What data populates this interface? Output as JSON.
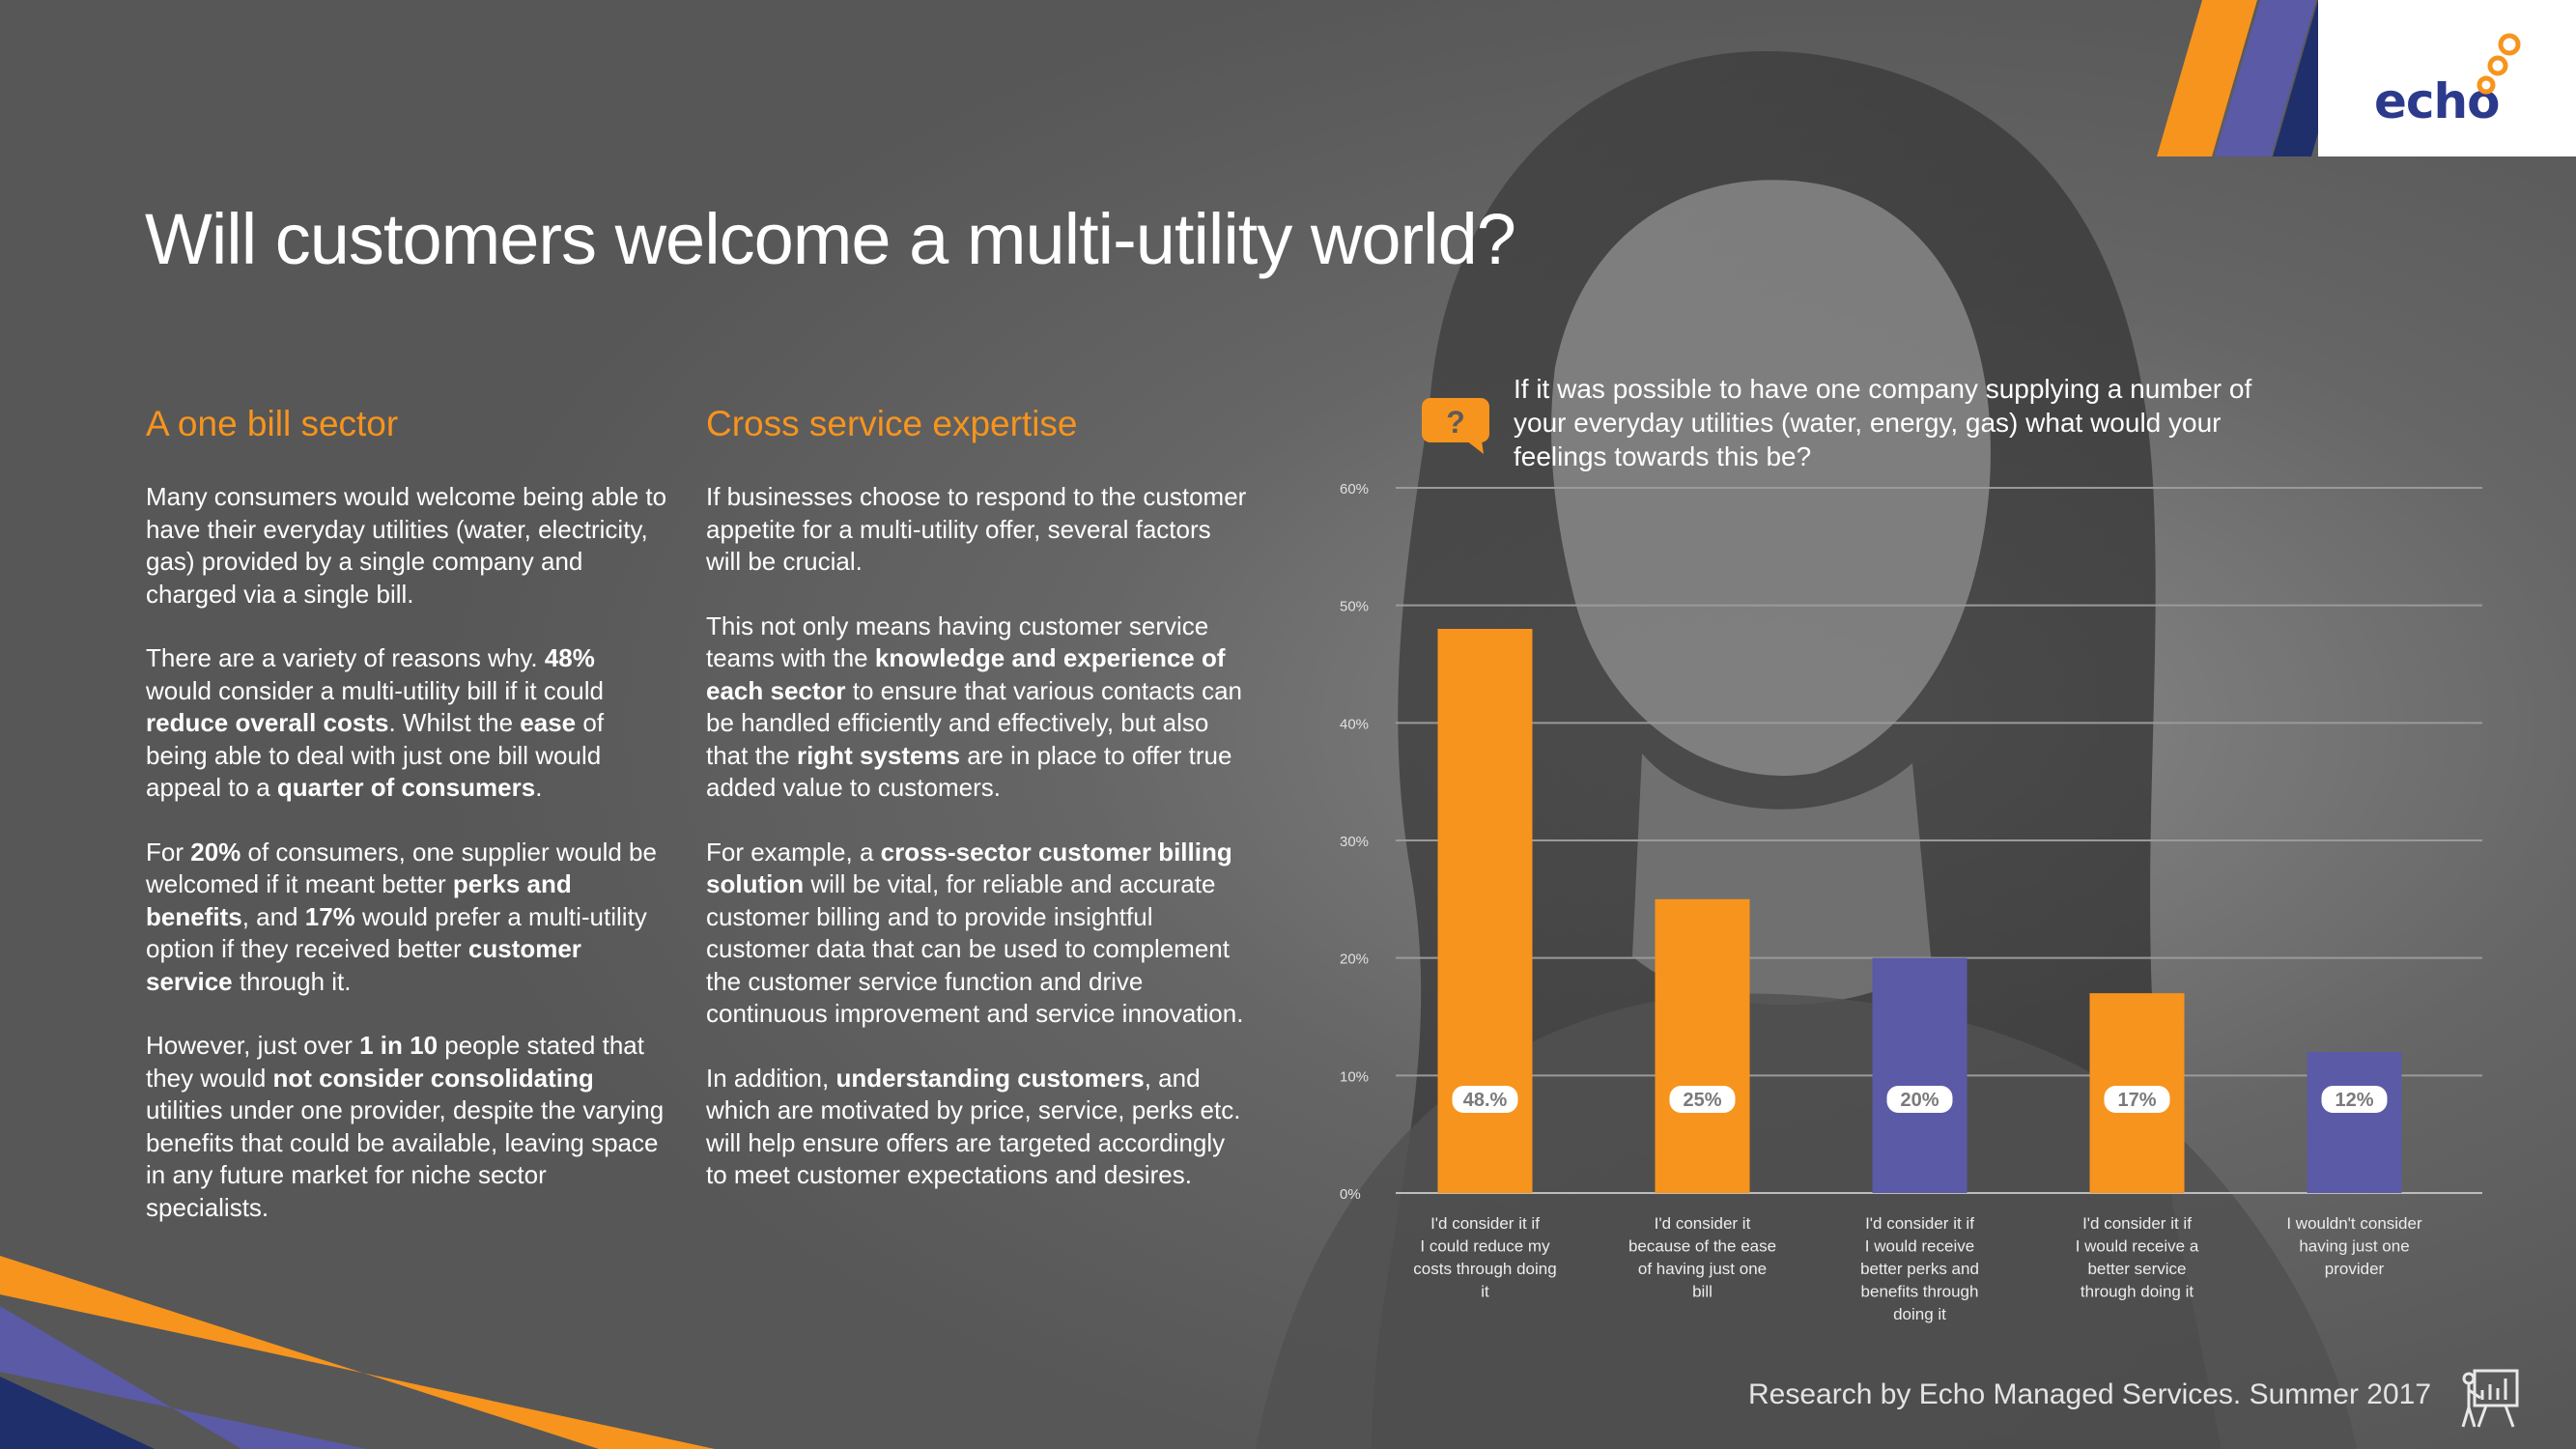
{
  "brand": {
    "logo_text": "echo",
    "accent_orange": "#f7941d",
    "accent_purple": "#5b5aa6",
    "accent_navy": "#1f2f6b"
  },
  "header": {
    "title": "Will customers welcome a multi-utility world?"
  },
  "col1": {
    "heading": "A one bill sector",
    "p1": "Many consumers would welcome being able to have their everyday utilities (water, electricity, gas) provided by a single company and charged via a single bill.",
    "p2": [
      {
        "t": "There are a variety of reasons why. ",
        "b": false
      },
      {
        "t": "48%",
        "b": true
      },
      {
        "t": " would consider  a multi-utility bill if it could ",
        "b": false
      },
      {
        "t": "reduce overall costs",
        "b": true
      },
      {
        "t": ".  Whilst the ",
        "b": false
      },
      {
        "t": "ease",
        "b": true
      },
      {
        "t": " of being able to deal with just one bill would appeal to a ",
        "b": false
      },
      {
        "t": "quarter of consumers",
        "b": true
      },
      {
        "t": ".",
        "b": false
      }
    ],
    "p3": [
      {
        "t": "For ",
        "b": false
      },
      {
        "t": "20%",
        "b": true
      },
      {
        "t": " of consumers, one supplier would be welcomed if it meant better ",
        "b": false
      },
      {
        "t": "perks and benefits",
        "b": true
      },
      {
        "t": ", and ",
        "b": false
      },
      {
        "t": "17%",
        "b": true
      },
      {
        "t": " would prefer a multi-utility option if they received better ",
        "b": false
      },
      {
        "t": "customer service",
        "b": true
      },
      {
        "t": " through it.",
        "b": false
      }
    ],
    "p4": [
      {
        "t": "However, just over ",
        "b": false
      },
      {
        "t": "1 in 10",
        "b": true
      },
      {
        "t": " people stated that they would ",
        "b": false
      },
      {
        "t": "not consider consolidating",
        "b": true
      },
      {
        "t": " utilities under one provider, despite the varying benefits that could be available, leaving space in any future market for niche sector specialists.",
        "b": false
      }
    ]
  },
  "col2": {
    "heading": "Cross service expertise",
    "p1": "If businesses choose to respond to the customer appetite for a multi-utility offer, several factors will be crucial.",
    "p2": [
      {
        "t": "This not only means having customer service teams with the ",
        "b": false
      },
      {
        "t": "knowledge and experience of each sector",
        "b": true
      },
      {
        "t": " to ensure that various contacts can be handled efficiently and effectively, but also that the ",
        "b": false
      },
      {
        "t": "right systems",
        "b": true
      },
      {
        "t": " are in place to offer true added value to customers.",
        "b": false
      }
    ],
    "p3": [
      {
        "t": "For example, a ",
        "b": false
      },
      {
        "t": "cross-sector customer billing solution",
        "b": true
      },
      {
        "t": " will be vital, for reliable and accurate customer billing and to provide insightful customer data that can be used to complement the customer service function and drive continuous improvement and service innovation.",
        "b": false
      }
    ],
    "p4": [
      {
        "t": "In addition, ",
        "b": false
      },
      {
        "t": "understanding customers",
        "b": true
      },
      {
        "t": ", and which are motivated by price, service, perks etc. will help ensure offers are targeted accordingly to meet customer expectations and desires.",
        "b": false
      }
    ]
  },
  "question_icon": "question-speech-bubble-icon",
  "question_mark": "?",
  "chart_data": {
    "type": "bar",
    "title": "If it was possible to have one company supplying a number of your everyday utilities  (water, energy, gas) what would your feelings towards this be?",
    "categories": [
      "I'd consider it if I could reduce my costs through doing it",
      "I'd consider it because of the ease of having just one bill",
      "I'd consider it if I would receive better perks and benefits through doing it",
      "I'd consider it if I would receive a better service through doing it",
      "I wouldn't consider having just one provider"
    ],
    "values": [
      48,
      25,
      20,
      17,
      12
    ],
    "data_labels": [
      "48.%",
      "25%",
      "20%",
      "17%",
      "12%"
    ],
    "colors": [
      "#f7941d",
      "#f7941d",
      "#5b5aa6",
      "#f7941d",
      "#5b5aa6"
    ],
    "ylim": [
      0,
      60
    ],
    "yticks": [
      0,
      10,
      20,
      30,
      40,
      50,
      60
    ],
    "ytick_labels": [
      "0%",
      "10%",
      "20%",
      "30%",
      "40%",
      "50%",
      "60%"
    ],
    "grid": true,
    "xlabel": "",
    "ylabel": ""
  },
  "footer": {
    "credit": "Research by Echo Managed Services. Summer 2017",
    "icon": "presentation-chart-icon"
  }
}
